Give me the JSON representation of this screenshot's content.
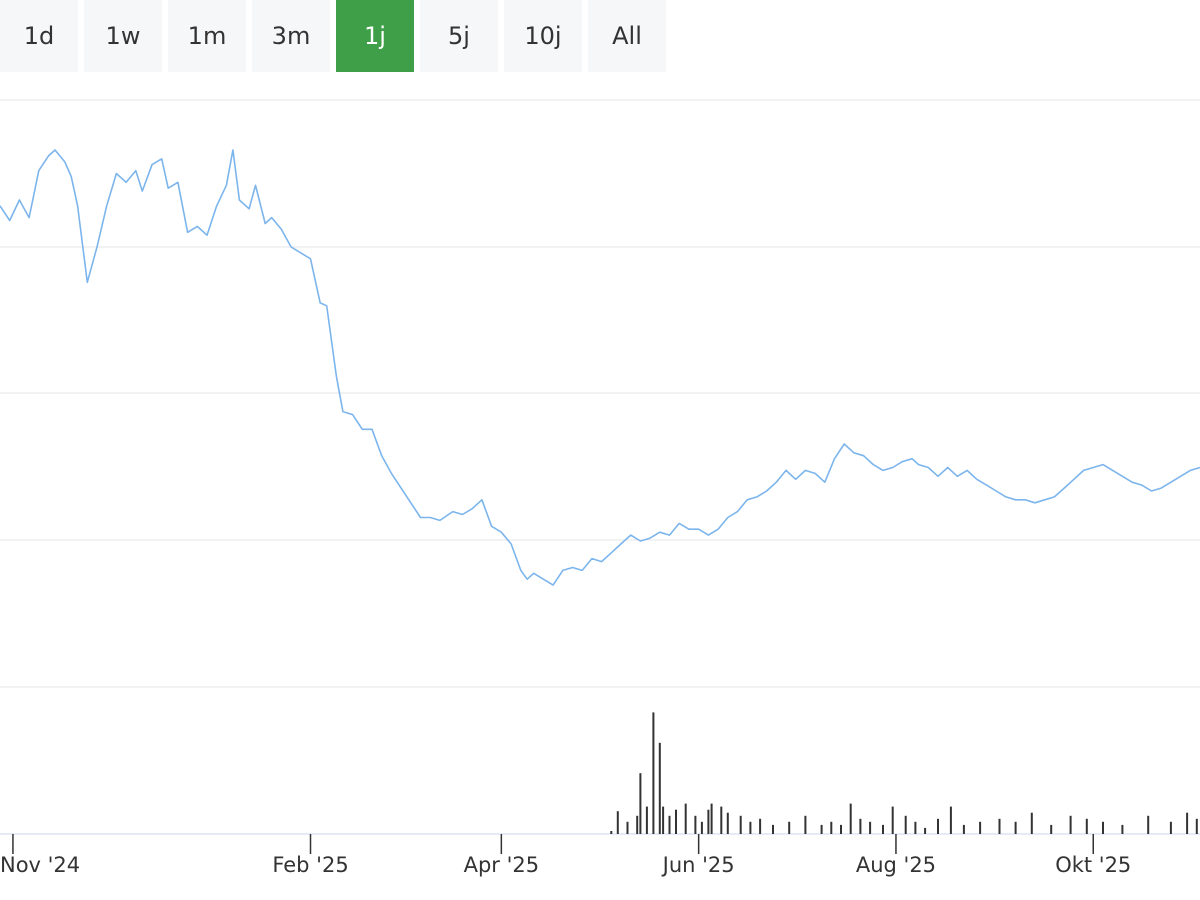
{
  "range_tabs": {
    "items": [
      {
        "label": "1d"
      },
      {
        "label": "1w"
      },
      {
        "label": "1m"
      },
      {
        "label": "3m"
      },
      {
        "label": "1j",
        "active": true
      },
      {
        "label": "5j"
      },
      {
        "label": "10j"
      },
      {
        "label": "All"
      }
    ],
    "active_color": "#3f9f49",
    "inactive_color": "#f6f7f8"
  },
  "chart_data": {
    "type": "line",
    "x_ticks": [
      "Nov '24",
      "Feb '25",
      "Apr '25",
      "Jun '25",
      "Aug '25",
      "Okt '25"
    ],
    "x_tick_dates": [
      "2024-11-01",
      "2025-02-01",
      "2025-04-01",
      "2025-06-01",
      "2025-08-01",
      "2025-10-01"
    ],
    "x_range": [
      "2024-10-28",
      "2025-11-03"
    ],
    "grid": true,
    "price_series": {
      "color": "#7cb5ec",
      "points": [
        [
          "2024-10-28",
          0.82
        ],
        [
          "2024-10-31",
          0.795
        ],
        [
          "2024-11-03",
          0.83
        ],
        [
          "2024-11-06",
          0.8
        ],
        [
          "2024-11-09",
          0.88
        ],
        [
          "2024-11-12",
          0.905
        ],
        [
          "2024-11-14",
          0.915
        ],
        [
          "2024-11-17",
          0.895
        ],
        [
          "2024-11-19",
          0.87
        ],
        [
          "2024-11-21",
          0.82
        ],
        [
          "2024-11-24",
          0.69
        ],
        [
          "2024-11-27",
          0.75
        ],
        [
          "2024-11-30",
          0.82
        ],
        [
          "2024-12-03",
          0.875
        ],
        [
          "2024-12-06",
          0.86
        ],
        [
          "2024-12-09",
          0.88
        ],
        [
          "2024-12-11",
          0.845
        ],
        [
          "2024-12-14",
          0.89
        ],
        [
          "2024-12-17",
          0.9
        ],
        [
          "2024-12-19",
          0.85
        ],
        [
          "2024-12-22",
          0.86
        ],
        [
          "2024-12-25",
          0.775
        ],
        [
          "2024-12-28",
          0.785
        ],
        [
          "2024-12-31",
          0.77
        ],
        [
          "2025-01-03",
          0.82
        ],
        [
          "2025-01-06",
          0.855
        ],
        [
          "2025-01-08",
          0.915
        ],
        [
          "2025-01-10",
          0.83
        ],
        [
          "2025-01-13",
          0.815
        ],
        [
          "2025-01-15",
          0.855
        ],
        [
          "2025-01-18",
          0.79
        ],
        [
          "2025-01-20",
          0.8
        ],
        [
          "2025-01-23",
          0.78
        ],
        [
          "2025-01-26",
          0.75
        ],
        [
          "2025-01-29",
          0.74
        ],
        [
          "2025-02-01",
          0.73
        ],
        [
          "2025-02-04",
          0.655
        ],
        [
          "2025-02-06",
          0.65
        ],
        [
          "2025-02-09",
          0.53
        ],
        [
          "2025-02-11",
          0.47
        ],
        [
          "2025-02-14",
          0.465
        ],
        [
          "2025-02-17",
          0.44
        ],
        [
          "2025-02-20",
          0.44
        ],
        [
          "2025-02-23",
          0.395
        ],
        [
          "2025-02-26",
          0.365
        ],
        [
          "2025-03-01",
          0.34
        ],
        [
          "2025-03-04",
          0.315
        ],
        [
          "2025-03-07",
          0.29
        ],
        [
          "2025-03-10",
          0.29
        ],
        [
          "2025-03-13",
          0.285
        ],
        [
          "2025-03-17",
          0.3
        ],
        [
          "2025-03-20",
          0.295
        ],
        [
          "2025-03-23",
          0.305
        ],
        [
          "2025-03-26",
          0.32
        ],
        [
          "2025-03-29",
          0.275
        ],
        [
          "2025-04-01",
          0.265
        ],
        [
          "2025-04-04",
          0.245
        ],
        [
          "2025-04-07",
          0.2
        ],
        [
          "2025-04-09",
          0.185
        ],
        [
          "2025-04-11",
          0.195
        ],
        [
          "2025-04-14",
          0.185
        ],
        [
          "2025-04-17",
          0.175
        ],
        [
          "2025-04-20",
          0.2
        ],
        [
          "2025-04-23",
          0.205
        ],
        [
          "2025-04-26",
          0.2
        ],
        [
          "2025-04-29",
          0.22
        ],
        [
          "2025-05-02",
          0.215
        ],
        [
          "2025-05-05",
          0.23
        ],
        [
          "2025-05-08",
          0.245
        ],
        [
          "2025-05-11",
          0.26
        ],
        [
          "2025-05-14",
          0.25
        ],
        [
          "2025-05-17",
          0.255
        ],
        [
          "2025-05-20",
          0.265
        ],
        [
          "2025-05-23",
          0.26
        ],
        [
          "2025-05-26",
          0.28
        ],
        [
          "2025-05-29",
          0.27
        ],
        [
          "2025-06-01",
          0.27
        ],
        [
          "2025-06-04",
          0.26
        ],
        [
          "2025-06-07",
          0.27
        ],
        [
          "2025-06-10",
          0.29
        ],
        [
          "2025-06-13",
          0.3
        ],
        [
          "2025-06-16",
          0.32
        ],
        [
          "2025-06-19",
          0.325
        ],
        [
          "2025-06-22",
          0.335
        ],
        [
          "2025-06-25",
          0.35
        ],
        [
          "2025-06-28",
          0.37
        ],
        [
          "2025-07-01",
          0.355
        ],
        [
          "2025-07-04",
          0.37
        ],
        [
          "2025-07-07",
          0.365
        ],
        [
          "2025-07-10",
          0.35
        ],
        [
          "2025-07-13",
          0.39
        ],
        [
          "2025-07-16",
          0.415
        ],
        [
          "2025-07-19",
          0.4
        ],
        [
          "2025-07-22",
          0.395
        ],
        [
          "2025-07-25",
          0.38
        ],
        [
          "2025-07-28",
          0.37
        ],
        [
          "2025-07-31",
          0.375
        ],
        [
          "2025-08-03",
          0.385
        ],
        [
          "2025-08-06",
          0.39
        ],
        [
          "2025-08-08",
          0.38
        ],
        [
          "2025-08-11",
          0.375
        ],
        [
          "2025-08-14",
          0.36
        ],
        [
          "2025-08-17",
          0.375
        ],
        [
          "2025-08-20",
          0.36
        ],
        [
          "2025-08-23",
          0.37
        ],
        [
          "2025-08-26",
          0.355
        ],
        [
          "2025-08-29",
          0.345
        ],
        [
          "2025-09-01",
          0.335
        ],
        [
          "2025-09-04",
          0.325
        ],
        [
          "2025-09-07",
          0.32
        ],
        [
          "2025-09-10",
          0.32
        ],
        [
          "2025-09-13",
          0.315
        ],
        [
          "2025-09-16",
          0.32
        ],
        [
          "2025-09-19",
          0.325
        ],
        [
          "2025-09-22",
          0.34
        ],
        [
          "2025-09-25",
          0.355
        ],
        [
          "2025-09-28",
          0.37
        ],
        [
          "2025-10-01",
          0.375
        ],
        [
          "2025-10-04",
          0.38
        ],
        [
          "2025-10-07",
          0.37
        ],
        [
          "2025-10-10",
          0.36
        ],
        [
          "2025-10-13",
          0.35
        ],
        [
          "2025-10-16",
          0.345
        ],
        [
          "2025-10-19",
          0.335
        ],
        [
          "2025-10-22",
          0.34
        ],
        [
          "2025-10-25",
          0.35
        ],
        [
          "2025-10-28",
          0.36
        ],
        [
          "2025-10-31",
          0.37
        ],
        [
          "2025-11-03",
          0.375
        ]
      ]
    },
    "volume_series": {
      "color": "#333333",
      "bars": [
        [
          "2025-05-05",
          2
        ],
        [
          "2025-05-07",
          15
        ],
        [
          "2025-05-10",
          8
        ],
        [
          "2025-05-13",
          12
        ],
        [
          "2025-05-14",
          40
        ],
        [
          "2025-05-16",
          18
        ],
        [
          "2025-05-18",
          80
        ],
        [
          "2025-05-20",
          60
        ],
        [
          "2025-05-21",
          18
        ],
        [
          "2025-05-23",
          12
        ],
        [
          "2025-05-25",
          16
        ],
        [
          "2025-05-28",
          20
        ],
        [
          "2025-05-31",
          12
        ],
        [
          "2025-06-02",
          8
        ],
        [
          "2025-06-04",
          16
        ],
        [
          "2025-06-05",
          20
        ],
        [
          "2025-06-08",
          18
        ],
        [
          "2025-06-10",
          14
        ],
        [
          "2025-06-14",
          12
        ],
        [
          "2025-06-17",
          8
        ],
        [
          "2025-06-20",
          10
        ],
        [
          "2025-06-24",
          6
        ],
        [
          "2025-06-29",
          8
        ],
        [
          "2025-07-04",
          12
        ],
        [
          "2025-07-09",
          6
        ],
        [
          "2025-07-12",
          8
        ],
        [
          "2025-07-15",
          6
        ],
        [
          "2025-07-18",
          20
        ],
        [
          "2025-07-21",
          10
        ],
        [
          "2025-07-24",
          8
        ],
        [
          "2025-07-28",
          6
        ],
        [
          "2025-07-31",
          18
        ],
        [
          "2025-08-04",
          12
        ],
        [
          "2025-08-07",
          8
        ],
        [
          "2025-08-10",
          4
        ],
        [
          "2025-08-14",
          10
        ],
        [
          "2025-08-18",
          18
        ],
        [
          "2025-08-22",
          6
        ],
        [
          "2025-08-27",
          8
        ],
        [
          "2025-09-02",
          10
        ],
        [
          "2025-09-07",
          8
        ],
        [
          "2025-09-12",
          14
        ],
        [
          "2025-09-18",
          6
        ],
        [
          "2025-09-24",
          12
        ],
        [
          "2025-09-29",
          10
        ],
        [
          "2025-10-04",
          8
        ],
        [
          "2025-10-10",
          6
        ],
        [
          "2025-10-18",
          12
        ],
        [
          "2025-10-25",
          8
        ],
        [
          "2025-10-30",
          14
        ],
        [
          "2025-11-02",
          10
        ]
      ]
    }
  }
}
